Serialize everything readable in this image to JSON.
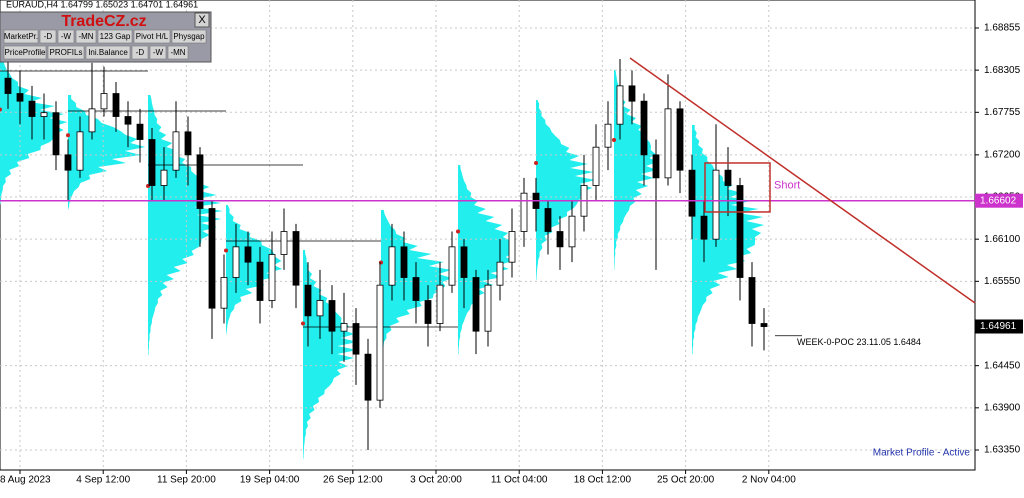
{
  "title": "EURAUD,H4  1.64799 1.65023 1.64701 1.64961",
  "panel": {
    "logo": "TradeCZ.cz",
    "close": "X",
    "buttons": [
      [
        "MarketPr.",
        "-D",
        "-W",
        "-MN",
        "123 Gap",
        "Pivot H/L",
        "Physgap"
      ],
      [
        "PriceProfile",
        "PROFILs",
        "Ini.Balance",
        "-D",
        "-W",
        "-MN"
      ]
    ]
  },
  "chart_data": {
    "type": "candlestick",
    "xtick_labels": [
      "8 Aug 2023",
      "4 Sep 12:00",
      "11 Sep 20:00",
      "19 Sep 04:00",
      "26 Sep 12:00",
      "3 Oct 20:00",
      "11 Oct 04:00",
      "18 Oct 12:00",
      "25 Oct 20:00",
      "2 Nov 04:00"
    ],
    "open": [
      1.682,
      1.68,
      1.679,
      1.677,
      1.6775,
      1.672,
      1.67,
      1.675,
      1.678,
      1.68,
      1.677,
      1.676,
      1.674,
      1.668,
      1.67,
      1.675,
      1.672,
      1.665,
      1.652,
      1.656,
      1.66,
      1.658,
      1.653,
      1.659,
      1.662,
      1.655,
      1.651,
      1.653,
      1.649,
      1.65,
      1.646,
      1.64,
      1.655,
      1.66,
      1.656,
      1.653,
      1.65,
      1.655,
      1.66,
      1.656,
      1.649,
      1.655,
      1.658,
      1.662,
      1.667,
      1.665,
      1.662,
      1.66,
      1.664,
      1.668,
      1.673,
      1.676,
      1.681,
      1.679,
      1.672,
      1.669,
      1.678,
      1.67,
      1.664,
      1.661,
      1.67,
      1.668,
      1.656,
      1.65
    ],
    "high": [
      1.6845,
      1.683,
      1.681,
      1.68,
      1.679,
      1.674,
      1.677,
      1.684,
      1.6835,
      1.6815,
      1.679,
      1.678,
      1.6755,
      1.673,
      1.679,
      1.677,
      1.673,
      1.666,
      1.659,
      1.663,
      1.662,
      1.66,
      1.662,
      1.665,
      1.663,
      1.658,
      1.657,
      1.655,
      1.654,
      1.652,
      1.648,
      1.658,
      1.663,
      1.662,
      1.658,
      1.655,
      1.658,
      1.662,
      1.661,
      1.657,
      1.657,
      1.661,
      1.665,
      1.669,
      1.669,
      1.666,
      1.664,
      1.666,
      1.672,
      1.676,
      1.679,
      1.6845,
      1.683,
      1.68,
      1.674,
      1.6825,
      1.679,
      1.672,
      1.666,
      1.676,
      1.673,
      1.669,
      1.658,
      1.652
    ],
    "low": [
      1.678,
      1.676,
      1.674,
      1.674,
      1.67,
      1.666,
      1.669,
      1.674,
      1.677,
      1.675,
      1.673,
      1.671,
      1.666,
      1.666,
      1.669,
      1.668,
      1.66,
      1.648,
      1.65,
      1.654,
      1.655,
      1.65,
      1.652,
      1.657,
      1.652,
      1.647,
      1.648,
      1.646,
      1.645,
      1.642,
      1.6335,
      1.639,
      1.653,
      1.653,
      1.65,
      1.647,
      1.649,
      1.654,
      1.652,
      1.646,
      1.647,
      1.653,
      1.656,
      1.66,
      1.662,
      1.659,
      1.657,
      1.658,
      1.662,
      1.666,
      1.67,
      1.674,
      1.676,
      1.668,
      1.657,
      1.668,
      1.667,
      1.661,
      1.658,
      1.66,
      1.664,
      1.653,
      1.647,
      1.6465
    ],
    "close": [
      1.68,
      1.679,
      1.677,
      1.6775,
      1.672,
      1.67,
      1.675,
      1.678,
      1.68,
      1.677,
      1.676,
      1.674,
      1.668,
      1.67,
      1.675,
      1.672,
      1.665,
      1.652,
      1.656,
      1.66,
      1.658,
      1.653,
      1.659,
      1.662,
      1.655,
      1.651,
      1.653,
      1.649,
      1.65,
      1.646,
      1.64,
      1.655,
      1.66,
      1.656,
      1.653,
      1.65,
      1.655,
      1.66,
      1.656,
      1.649,
      1.655,
      1.658,
      1.662,
      1.667,
      1.665,
      1.662,
      1.66,
      1.664,
      1.668,
      1.673,
      1.676,
      1.681,
      1.679,
      1.672,
      1.669,
      1.678,
      1.67,
      1.664,
      1.661,
      1.67,
      1.668,
      1.656,
      1.65,
      1.6496
    ],
    "color": "#000000",
    "ylim": [
      1.63089,
      1.6922
    ],
    "yticks": [
      1.68855,
      1.68305,
      1.67755,
      {
        "value": 1.672,
        "label": "1.67200"
      },
      {
        "value": 1.6665,
        "label": "1.66650"
      },
      {
        "value": 1.661,
        "label": "1.66100"
      },
      {
        "value": 1.6555,
        "label": "1.65550"
      },
      {
        "value": 1.6445,
        "label": "1.64450"
      },
      {
        "value": 1.639,
        "label": "1.63900"
      },
      {
        "value": 1.6335,
        "label": "1.63350"
      }
    ],
    "grid": true,
    "annotations": {
      "level": 1.66602,
      "level_color": "#cc33cc",
      "current_price": 1.64961,
      "trendline": [
        1.68463,
        1.65267
      ],
      "trendline_color": "#c0302a",
      "short_box": {
        "label": "Short",
        "top": 1.67094,
        "bottom": 1.66455
      },
      "poc_label": "WEEK-0-POC 23.11.05 1.6484",
      "poc_price": 1.6484,
      "poc_levels": [
        1.68294,
        1.67772,
        1.67068,
        1.66076,
        1.64954
      ],
      "status": "Market Profile - Active"
    }
  }
}
